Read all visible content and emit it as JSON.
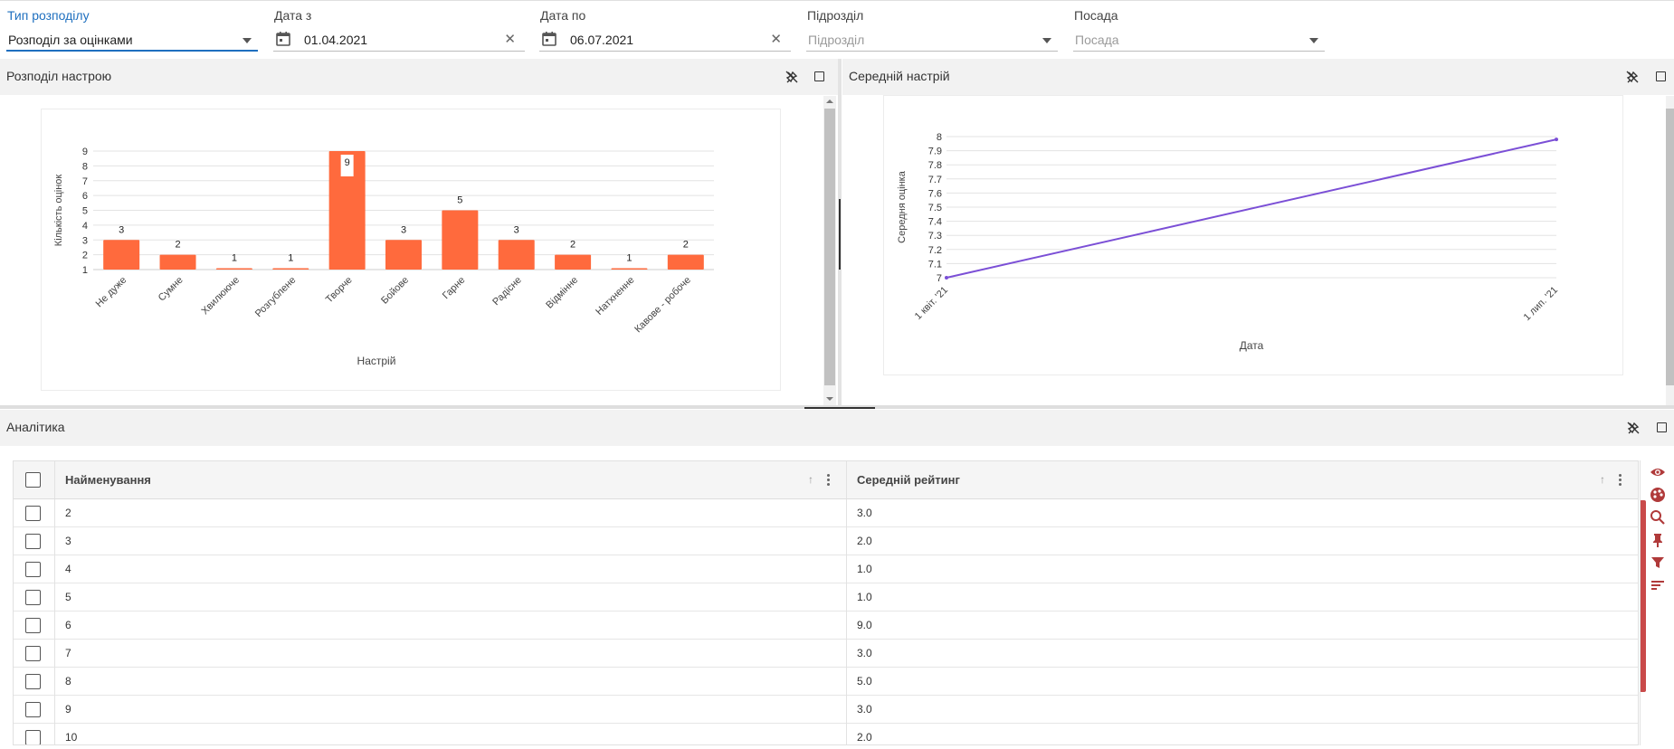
{
  "filters": {
    "type": {
      "label": "Тип розподілу",
      "value": "Розподіл за оцінками"
    },
    "date_from": {
      "label": "Дата з",
      "value": "01.04.2021"
    },
    "date_to": {
      "label": "Дата по",
      "value": "06.07.2021"
    },
    "department": {
      "label": "Підрозділ",
      "placeholder": "Підрозділ"
    },
    "position": {
      "label": "Посада",
      "placeholder": "Посада"
    }
  },
  "panels": {
    "mood_distribution": {
      "title": "Розподіл настрою"
    },
    "average_mood": {
      "title": "Середній настрій"
    },
    "analytics": {
      "title": "Аналітика"
    }
  },
  "chart_data": [
    {
      "type": "bar",
      "title": "",
      "xlabel": "Настрій",
      "ylabel": "Кількість оцінок",
      "categories": [
        "Не дуже",
        "Сумне",
        "Хвилююче",
        "Розгублене",
        "Творче",
        "Бойове",
        "Гарне",
        "Радісне",
        "Відмінне",
        "Натхненне",
        "Кавове - робоче"
      ],
      "values": [
        3,
        2,
        1,
        1,
        9,
        3,
        5,
        3,
        2,
        1,
        2
      ],
      "ylim": [
        1,
        9
      ],
      "yticks": [
        "1",
        "2",
        "3",
        "4",
        "5",
        "6",
        "7",
        "8",
        "9"
      ],
      "color": "#ff6a3d",
      "grid": true
    },
    {
      "type": "line",
      "title": "",
      "xlabel": "Дата",
      "ylabel": "Середня оцінка",
      "x": [
        "1 квіт. '21",
        "1 лип. '21"
      ],
      "values": [
        7.0,
        7.98
      ],
      "ylim": [
        7,
        8
      ],
      "yticks": [
        "7",
        "7.1",
        "7.2",
        "7.3",
        "7.4",
        "7.5",
        "7.6",
        "7.7",
        "7.8",
        "7.9",
        "8"
      ],
      "color": "#7b4fd6",
      "grid": true
    }
  ],
  "table": {
    "columns": [
      "Найменування",
      "Середній рейтинг"
    ],
    "rows": [
      [
        "2",
        "3.0"
      ],
      [
        "3",
        "2.0"
      ],
      [
        "4",
        "1.0"
      ],
      [
        "5",
        "1.0"
      ],
      [
        "6",
        "9.0"
      ],
      [
        "7",
        "3.0"
      ],
      [
        "8",
        "5.0"
      ],
      [
        "9",
        "3.0"
      ],
      [
        "10",
        "2.0"
      ]
    ]
  },
  "icons": {
    "side_tools": [
      "eye-icon",
      "palette-icon",
      "search-icon",
      "pin-icon",
      "filter-icon",
      "sort-icon"
    ],
    "tool_color": "#b03a3a"
  }
}
